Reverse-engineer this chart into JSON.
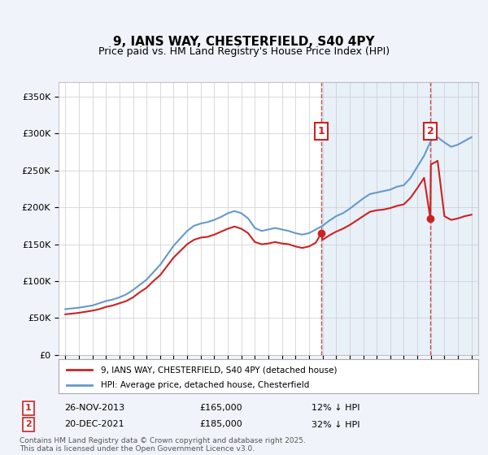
{
  "title": "9, IANS WAY, CHESTERFIELD, S40 4PY",
  "subtitle": "Price paid vs. HM Land Registry's House Price Index (HPI)",
  "hpi_label": "HPI: Average price, detached house, Chesterfield",
  "price_label": "9, IANS WAY, CHESTERFIELD, S40 4PY (detached house)",
  "sale1_date": "26-NOV-2013",
  "sale1_price": 165000,
  "sale1_note": "12% ↓ HPI",
  "sale2_date": "20-DEC-2021",
  "sale2_price": 185000,
  "sale2_note": "32% ↓ HPI",
  "sale1_year": 2013.9,
  "sale2_year": 2021.96,
  "footer": "Contains HM Land Registry data © Crown copyright and database right 2025.\nThis data is licensed under the Open Government Licence v3.0.",
  "bg_color": "#f0f4fa",
  "plot_bg": "#ffffff",
  "hpi_color": "#6699cc",
  "price_color": "#cc2222",
  "dashed_color": "#cc2222",
  "ylim": [
    0,
    370000
  ],
  "xlim_start": 1994.5,
  "xlim_end": 2025.5
}
